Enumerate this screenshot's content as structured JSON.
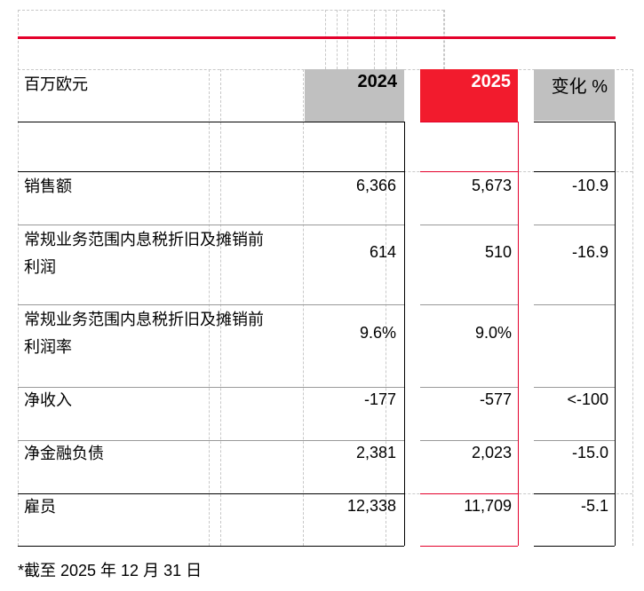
{
  "colors": {
    "accent": "#e4002b",
    "header_2025": "#f21b2d",
    "header_gray": "#c0c0c0"
  },
  "header": {
    "unit": "百万欧元",
    "col_2024": "2024",
    "col_2025": "2025",
    "col_change": "变化 %"
  },
  "rows": [
    {
      "label": "销售额",
      "v2024": "6,366",
      "v2025": "5,673",
      "change": "-10.9"
    },
    {
      "label": "常规业务范围内息税折旧及摊销前利润",
      "v2024": "614",
      "v2025": "510",
      "change": "-16.9"
    },
    {
      "label": "常规业务范围内息税折旧及摊销前利润率",
      "v2024": "9.6%",
      "v2025": "9.0%",
      "change": ""
    },
    {
      "label": "净收入",
      "v2024": "-177",
      "v2025": "-577",
      "change": "<-100"
    },
    {
      "label": "净金融负债",
      "v2024": "2,381",
      "v2025": "2,023",
      "change": "-15.0"
    },
    {
      "label": "雇员",
      "v2024": "12,338",
      "v2025": "11,709",
      "change": "-5.1"
    }
  ],
  "footnote": "*截至 2025 年 12 月 31 日"
}
